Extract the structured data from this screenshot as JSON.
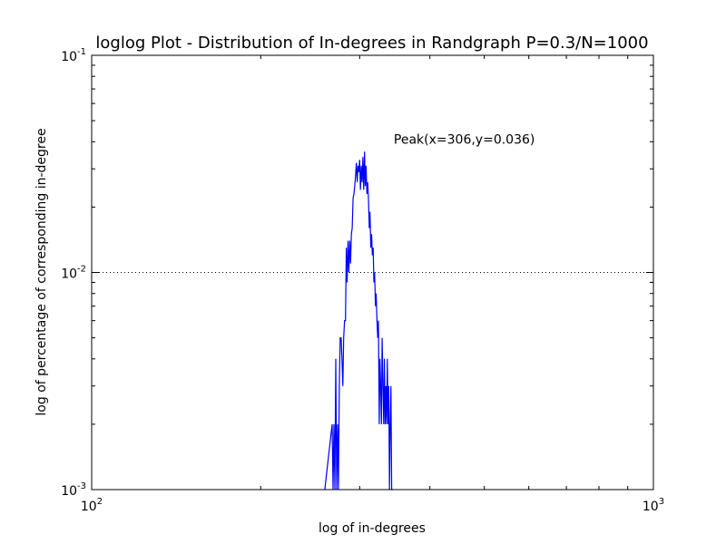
{
  "chart_data": {
    "type": "line",
    "title": "loglog Plot - Distribution of In-degrees in Randgraph P=0.3/N=1000",
    "xlabel": "log of in-degrees",
    "ylabel": "log of percentage of corresponding in-degree",
    "xscale": "log",
    "yscale": "log",
    "xlim": [
      100,
      1000
    ],
    "ylim": [
      0.001,
      0.1
    ],
    "x_ticks": [
      {
        "base": "10",
        "exp": "2"
      },
      {
        "base": "10",
        "exp": "3"
      }
    ],
    "y_ticks": [
      {
        "base": "10",
        "exp": "-3"
      },
      {
        "base": "10",
        "exp": "-2"
      },
      {
        "base": "10",
        "exp": "-1"
      }
    ],
    "grid": "dotted at major ticks",
    "series_color": "#0000ff",
    "annotation": {
      "text": "Peak(x=306,y=0.036)",
      "x": 345,
      "y": 0.041
    },
    "series": [
      {
        "x": [
          260,
          268,
          269,
          270,
          271,
          272,
          273,
          274,
          275,
          276,
          277,
          278,
          279,
          280,
          281,
          282,
          283,
          284,
          285,
          286,
          287,
          288,
          289,
          290,
          291,
          292,
          293,
          294,
          295,
          296,
          297,
          298,
          299,
          300,
          301,
          302,
          303,
          304,
          305,
          306,
          307,
          308,
          309,
          310,
          311,
          312,
          313,
          314,
          315,
          316,
          317,
          318,
          319,
          320,
          321,
          322,
          323,
          324,
          325,
          326,
          327,
          328,
          329,
          330,
          331,
          332,
          333,
          334,
          335,
          336,
          337,
          338,
          339,
          340,
          341,
          342,
          343,
          344
        ],
        "y": [
          0.001,
          0.002,
          0.001,
          0.002,
          0.001,
          0.004,
          0.001,
          0.002,
          0.001,
          0.003,
          0.005,
          0.005,
          0.004,
          0.003,
          0.005,
          0.006,
          0.006,
          0.013,
          0.009,
          0.014,
          0.01,
          0.014,
          0.011,
          0.015,
          0.016,
          0.022,
          0.023,
          0.025,
          0.028,
          0.032,
          0.026,
          0.031,
          0.029,
          0.033,
          0.024,
          0.031,
          0.026,
          0.034,
          0.024,
          0.036,
          0.025,
          0.031,
          0.023,
          0.026,
          0.022,
          0.016,
          0.019,
          0.013,
          0.015,
          0.012,
          0.013,
          0.009,
          0.01,
          0.007,
          0.008,
          0.006,
          0.005,
          0.006,
          0.002,
          0.004,
          0.003,
          0.002,
          0.005,
          0.003,
          0.002,
          0.004,
          0.002,
          0.003,
          0.002,
          0.004,
          0.002,
          0.003,
          0.001,
          0.002,
          0.003,
          0.001,
          0.001,
          0.001
        ]
      }
    ]
  }
}
